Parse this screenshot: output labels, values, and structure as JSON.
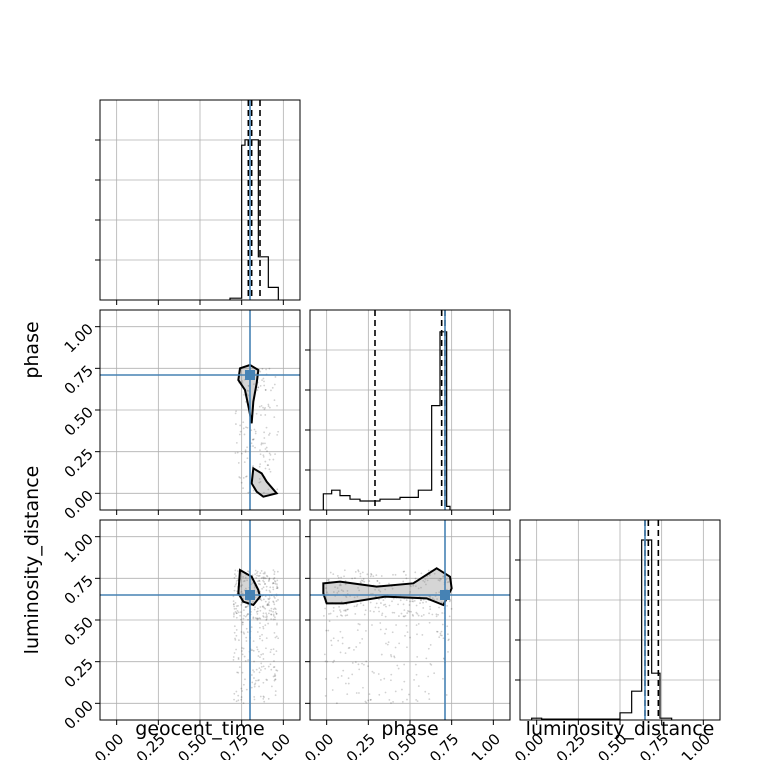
{
  "chart_data": {
    "type": "corner",
    "parameters": [
      "geocent_time",
      "phase",
      "luminosity_distance"
    ],
    "axes": {
      "range": [
        -0.1,
        1.1
      ],
      "ticks": [
        0.0,
        0.25,
        0.5,
        0.75,
        1.0
      ],
      "tick_labels": [
        "0.00",
        "0.25",
        "0.50",
        "0.75",
        "1.00"
      ],
      "xlabels": [
        "geocent_time",
        "phase",
        "luminosity_distance"
      ],
      "ylabels": [
        "",
        "phase",
        "luminosity_distance"
      ],
      "grid": true
    },
    "truths": {
      "geocent_time": 0.8,
      "phase": 0.71,
      "luminosity_distance": 0.65
    },
    "truth_color": "#4682b4",
    "histograms": [
      {
        "parameter": "geocent_time",
        "bins": [
          [
            0.68,
            0.7,
            0.01
          ],
          [
            0.7,
            0.75,
            0.01
          ],
          [
            0.75,
            0.77,
            0.86
          ],
          [
            0.77,
            0.85,
            0.89
          ],
          [
            0.85,
            0.91,
            0.24
          ],
          [
            0.91,
            0.97,
            0.07
          ]
        ],
        "quantiles": [
          0.79,
          0.81,
          0.86
        ]
      },
      {
        "parameter": "phase",
        "bins": [
          [
            -0.02,
            0.03,
            0.09
          ],
          [
            0.03,
            0.08,
            0.11
          ],
          [
            0.08,
            0.14,
            0.08
          ],
          [
            0.14,
            0.2,
            0.06
          ],
          [
            0.2,
            0.32,
            0.05
          ],
          [
            0.32,
            0.44,
            0.06
          ],
          [
            0.44,
            0.55,
            0.07
          ],
          [
            0.55,
            0.63,
            0.11
          ],
          [
            0.63,
            0.68,
            0.58
          ],
          [
            0.68,
            0.72,
            0.99
          ],
          [
            0.72,
            0.74,
            0.02
          ]
        ],
        "quantiles": [
          0.29,
          0.69,
          0.71
        ]
      },
      {
        "parameter": "luminosity_distance",
        "bins": [
          [
            -0.03,
            0.03,
            0.01
          ],
          [
            0.03,
            0.2,
            0.005
          ],
          [
            0.2,
            0.5,
            0.005
          ],
          [
            0.5,
            0.57,
            0.04
          ],
          [
            0.57,
            0.63,
            0.16
          ],
          [
            0.63,
            0.69,
            1.0
          ],
          [
            0.69,
            0.74,
            0.26
          ],
          [
            0.74,
            0.81,
            0.01
          ]
        ],
        "quantiles": [
          0.65,
          0.67,
          0.73
        ]
      }
    ],
    "scatter_regions": [
      {
        "x": "geocent_time",
        "y": "phase",
        "x_range": [
          0.71,
          0.97
        ],
        "y_range": [
          0.0,
          0.75
        ]
      },
      {
        "x": "geocent_time",
        "y": "luminosity_distance",
        "x_range": [
          0.7,
          0.97
        ],
        "y_range": [
          0.5,
          0.8
        ]
      },
      {
        "x": "geocent_time",
        "y": "luminosity_distance",
        "x_range": [
          0.7,
          0.97
        ],
        "y_range": [
          0.0,
          0.5
        ]
      },
      {
        "x": "phase",
        "y": "luminosity_distance",
        "x_range": [
          -0.02,
          0.75
        ],
        "y_range": [
          0.52,
          0.8
        ]
      },
      {
        "x": "phase",
        "y": "luminosity_distance",
        "x_range": [
          -0.02,
          0.75
        ],
        "y_range": [
          0.0,
          0.5
        ]
      }
    ],
    "contours": [
      {
        "x": "geocent_time",
        "y": "phase",
        "points": [
          [
            0.74,
            0.75
          ],
          [
            0.8,
            0.77
          ],
          [
            0.85,
            0.74
          ],
          [
            0.84,
            0.66
          ],
          [
            0.82,
            0.55
          ],
          [
            0.81,
            0.42
          ],
          [
            0.795,
            0.5
          ],
          [
            0.77,
            0.62
          ],
          [
            0.73,
            0.68
          ],
          [
            0.74,
            0.75
          ]
        ]
      },
      {
        "x": "geocent_time",
        "y": "phase",
        "points": [
          [
            0.82,
            0.15
          ],
          [
            0.87,
            0.12
          ],
          [
            0.9,
            0.07
          ],
          [
            0.96,
            0.0
          ],
          [
            0.88,
            -0.02
          ],
          [
            0.84,
            0.01
          ],
          [
            0.81,
            0.06
          ],
          [
            0.82,
            0.15
          ]
        ]
      },
      {
        "x": "geocent_time",
        "y": "luminosity_distance",
        "points": [
          [
            0.74,
            0.8
          ],
          [
            0.81,
            0.76
          ],
          [
            0.85,
            0.68
          ],
          [
            0.86,
            0.64
          ],
          [
            0.82,
            0.59
          ],
          [
            0.76,
            0.61
          ],
          [
            0.73,
            0.66
          ],
          [
            0.74,
            0.8
          ]
        ]
      },
      {
        "x": "phase",
        "y": "luminosity_distance",
        "points": [
          [
            -0.02,
            0.72
          ],
          [
            0.08,
            0.73
          ],
          [
            0.3,
            0.7
          ],
          [
            0.52,
            0.72
          ],
          [
            0.66,
            0.81
          ],
          [
            0.74,
            0.76
          ],
          [
            0.75,
            0.69
          ],
          [
            0.7,
            0.59
          ],
          [
            0.6,
            0.63
          ],
          [
            0.35,
            0.64
          ],
          [
            0.1,
            0.6
          ],
          [
            0.0,
            0.6
          ],
          [
            -0.02,
            0.66
          ],
          [
            -0.02,
            0.72
          ]
        ]
      }
    ]
  }
}
